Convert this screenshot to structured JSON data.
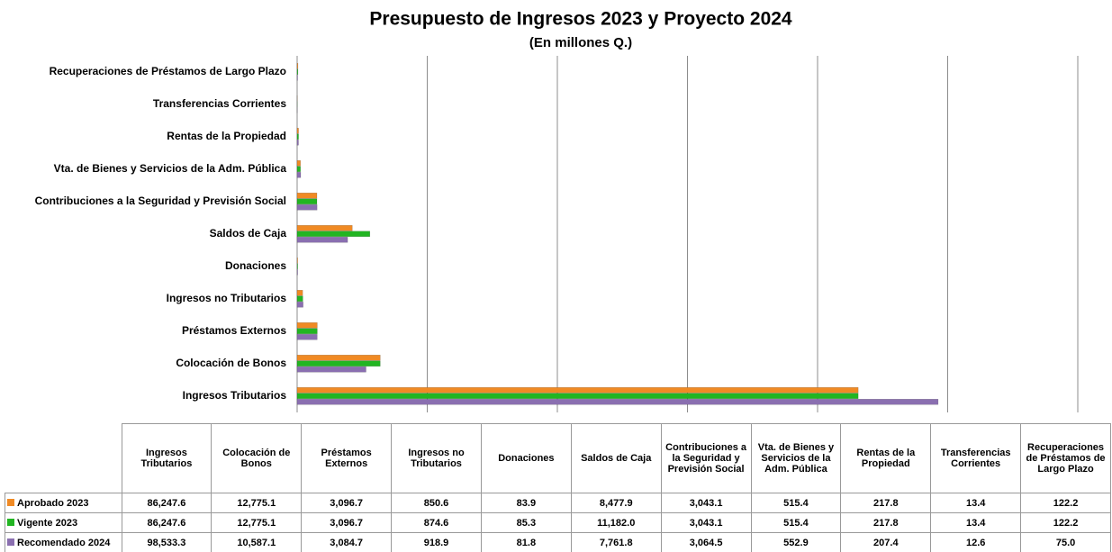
{
  "chart_data": {
    "type": "bar",
    "orientation": "horizontal",
    "title": "Presupuesto  de Ingresos 2023 y Proyecto 2024",
    "subtitle": "(En millones Q.)",
    "categories": [
      "Ingresos Tributarios",
      "Colocación de Bonos",
      "Préstamos Externos",
      "Ingresos no Tributarios",
      "Donaciones",
      "Saldos de Caja",
      "Contribuciones a la Seguridad y Previsión Social",
      "Vta. de Bienes y Servicios de la Adm. Pública",
      "Rentas de la Propiedad",
      "Transferencias Corrientes",
      "Recuperaciones de Préstamos de Largo Plazo"
    ],
    "series": [
      {
        "name": "Aprobado 2023",
        "color": "#f08a24",
        "values": [
          86247.6,
          12775.1,
          3096.7,
          850.6,
          83.9,
          8477.9,
          3043.1,
          515.4,
          217.8,
          13.4,
          122.2
        ],
        "value_labels": [
          "86,247.6",
          "12,775.1",
          "3,096.7",
          "850.6",
          "83.9",
          "8,477.9",
          "3,043.1",
          "515.4",
          "217.8",
          "13.4",
          "122.2"
        ]
      },
      {
        "name": "Vigente 2023",
        "color": "#22b522",
        "values": [
          86247.6,
          12775.1,
          3096.7,
          874.6,
          85.3,
          11182.0,
          3043.1,
          515.4,
          217.8,
          13.4,
          122.2
        ],
        "value_labels": [
          "86,247.6",
          "12,775.1",
          "3,096.7",
          "874.6",
          "85.3",
          "11,182.0",
          "3,043.1",
          "515.4",
          "217.8",
          "13.4",
          "122.2"
        ]
      },
      {
        "name": "Recomendado 2024",
        "color": "#8a6fb0",
        "values": [
          98533.3,
          10587.1,
          3084.7,
          918.9,
          81.8,
          7761.8,
          3064.5,
          552.9,
          207.4,
          12.6,
          75.0
        ],
        "value_labels": [
          "98,533.3",
          "10,587.1",
          "3,084.7",
          "918.9",
          "81.8",
          "7,761.8",
          "3,064.5",
          "552.9",
          "207.4",
          "12.6",
          "75.0"
        ]
      }
    ],
    "xlim": [
      0,
      120000
    ],
    "xticks": [
      {
        "value": 0,
        "label": "0.0"
      },
      {
        "value": 20000,
        "label": "20,000.0"
      },
      {
        "value": 40000,
        "label": "40,000.0"
      },
      {
        "value": 60000,
        "label": "60,000.0"
      },
      {
        "value": 80000,
        "label": "80,000.0"
      },
      {
        "value": 100000,
        "label": "100,000.0"
      },
      {
        "value": 120000,
        "label": "120,000.0"
      }
    ],
    "grid": true
  }
}
